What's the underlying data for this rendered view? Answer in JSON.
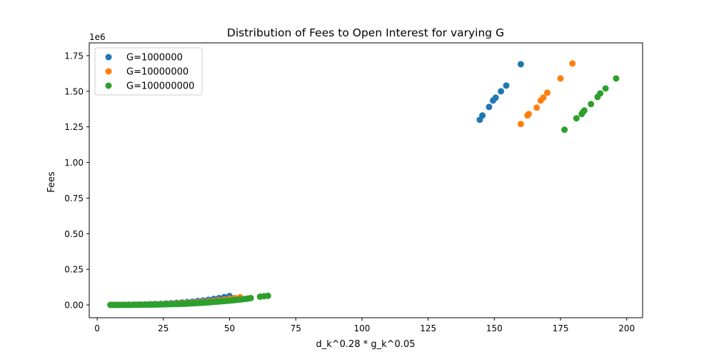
{
  "chart_data": {
    "type": "scatter",
    "title": "Distribution of Fees to Open Interest for varying G",
    "xlabel": "d_k^0.28 * g_k^0.05",
    "ylabel": "Fees",
    "y_offset_label": "1e6",
    "xlim": [
      -3,
      206
    ],
    "ylim": [
      -90000,
      1840000
    ],
    "xticks": [
      0,
      25,
      50,
      75,
      100,
      125,
      150,
      175,
      200
    ],
    "yticks": [
      0,
      0.25,
      0.5,
      0.75,
      1.0,
      1.25,
      1.5,
      1.75
    ],
    "ytick_labels": [
      "0.00",
      "0.25",
      "0.50",
      "0.75",
      "1.00",
      "1.25",
      "1.50",
      "1.75"
    ],
    "ytick_scale": 1000000,
    "legend_position": "top-left",
    "grid": false,
    "series": [
      {
        "name": "G=1000000",
        "color": "#1f77b4",
        "x": [
          6,
          8,
          10,
          12,
          14,
          16,
          18,
          20,
          22,
          24,
          26,
          28,
          30,
          32,
          34,
          36,
          38,
          40,
          42,
          44,
          46,
          48,
          50,
          144.5,
          145.5,
          148,
          149.5,
          150.5,
          152.5,
          154.5,
          160
        ],
        "y": [
          0,
          0,
          1000,
          1500,
          2000,
          3000,
          4000,
          5000,
          6500,
          8000,
          10000,
          12000,
          14500,
          17000,
          20000,
          23000,
          27000,
          31000,
          36000,
          42000,
          48000,
          55000,
          62000,
          1300000,
          1330000,
          1390000,
          1435000,
          1455000,
          1500000,
          1540000,
          1690000
        ]
      },
      {
        "name": "G=10000000",
        "color": "#ff7f0e",
        "x": [
          6,
          8,
          10,
          12,
          14,
          16,
          18,
          20,
          22,
          24,
          26,
          28,
          30,
          32,
          34,
          36,
          38,
          40,
          42,
          44,
          46,
          48,
          50,
          52,
          54,
          160,
          162.5,
          163,
          166,
          167.5,
          168.5,
          170,
          175,
          179.5
        ],
        "y": [
          0,
          0,
          500,
          1000,
          1500,
          2000,
          2500,
          3500,
          4500,
          5500,
          7000,
          8500,
          10000,
          12000,
          14000,
          16500,
          19000,
          22000,
          25500,
          29500,
          33500,
          38000,
          43000,
          48000,
          54000,
          1270000,
          1330000,
          1340000,
          1385000,
          1435000,
          1455000,
          1490000,
          1590000,
          1695000
        ]
      },
      {
        "name": "G=100000000",
        "color": "#2ca02c",
        "x": [
          5,
          6,
          7,
          8,
          9,
          10,
          11,
          12,
          13,
          14,
          15,
          16,
          17,
          18,
          19,
          20,
          21,
          22,
          23,
          24,
          25,
          26,
          27,
          28,
          29,
          30,
          31,
          32,
          33,
          34,
          35,
          36,
          37,
          38,
          39,
          40,
          41,
          42,
          43,
          44,
          45,
          46,
          47,
          48,
          49,
          50,
          51,
          52,
          53,
          54,
          55,
          56,
          57,
          58,
          61.5,
          63,
          64.5,
          176.5,
          181,
          183,
          183.5,
          184,
          186.5,
          189,
          190,
          192,
          196
        ],
        "y": [
          0,
          0,
          0,
          0,
          0,
          0,
          500,
          500,
          500,
          1000,
          1000,
          1000,
          1500,
          1500,
          2000,
          2000,
          2500,
          2500,
          3000,
          3500,
          4000,
          4500,
          5000,
          5500,
          6000,
          6500,
          7000,
          7500,
          8000,
          9000,
          10000,
          11000,
          12000,
          13000,
          14000,
          15000,
          16500,
          18000,
          19500,
          21000,
          22500,
          24000,
          25500,
          27000,
          28500,
          30000,
          32000,
          34000,
          36000,
          38000,
          40000,
          42000,
          45000,
          48000,
          58000,
          61000,
          64000,
          1230000,
          1310000,
          1340000,
          1355000,
          1365000,
          1410000,
          1460000,
          1485000,
          1520000,
          1590000
        ]
      }
    ]
  }
}
